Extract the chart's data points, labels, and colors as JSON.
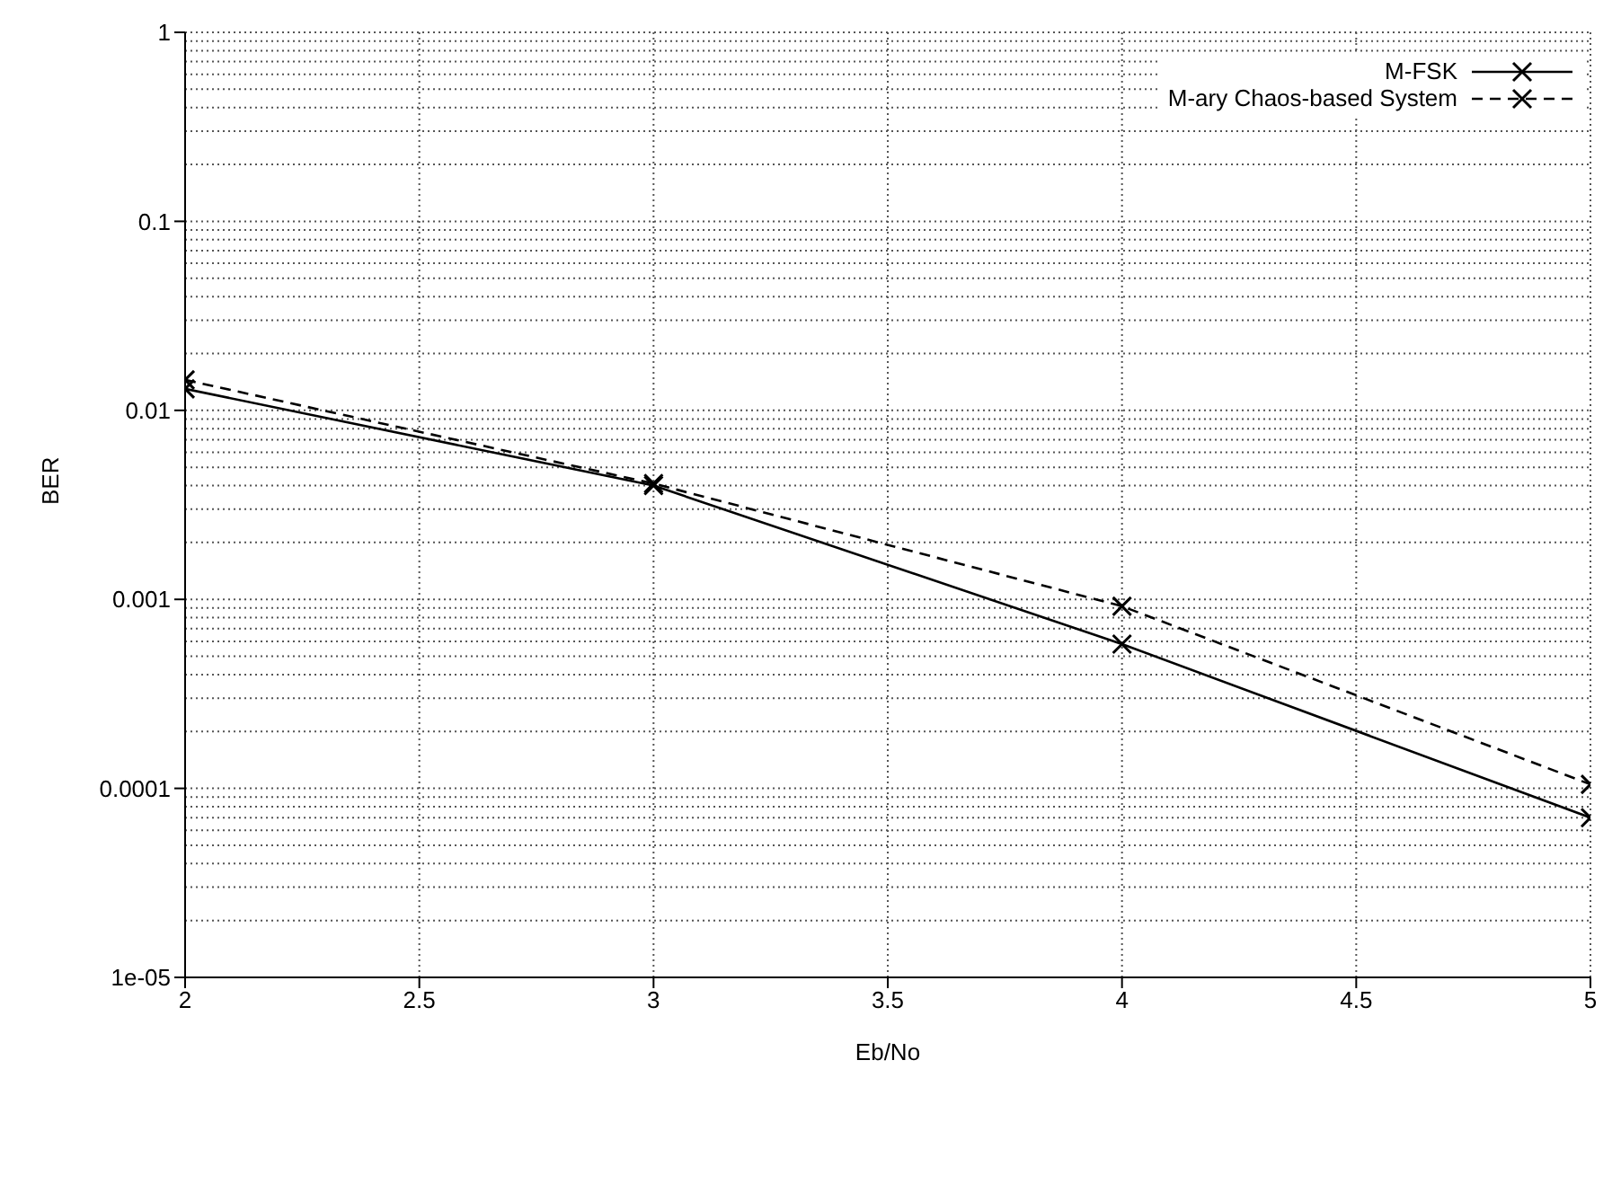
{
  "chart_data": {
    "type": "line",
    "xlabel": "Eb/No",
    "ylabel": "BER",
    "x": [
      2,
      3,
      4,
      5
    ],
    "series": [
      {
        "name": "M-FSK",
        "color": "#000000",
        "values": [
          0.013,
          0.004,
          0.00058,
          7e-05
        ],
        "line_style": "solid",
        "marker": "cross"
      },
      {
        "name": "M-ary Chaos-based System",
        "color": "#000000",
        "values": [
          0.0145,
          0.0041,
          0.00092,
          0.000105
        ],
        "line_style": "dashed",
        "marker": "cross"
      }
    ],
    "xlim": [
      2,
      5
    ],
    "xticks": [
      2,
      2.5,
      3,
      3.5,
      4,
      4.5,
      5
    ],
    "ylim": [
      1e-05,
      1
    ],
    "yticks": [
      {
        "value": 1e-05,
        "label": "1e-05"
      },
      0.0001,
      0.001,
      0.01,
      0.1,
      1
    ],
    "log": "y",
    "grid": true,
    "legend": "top right"
  }
}
